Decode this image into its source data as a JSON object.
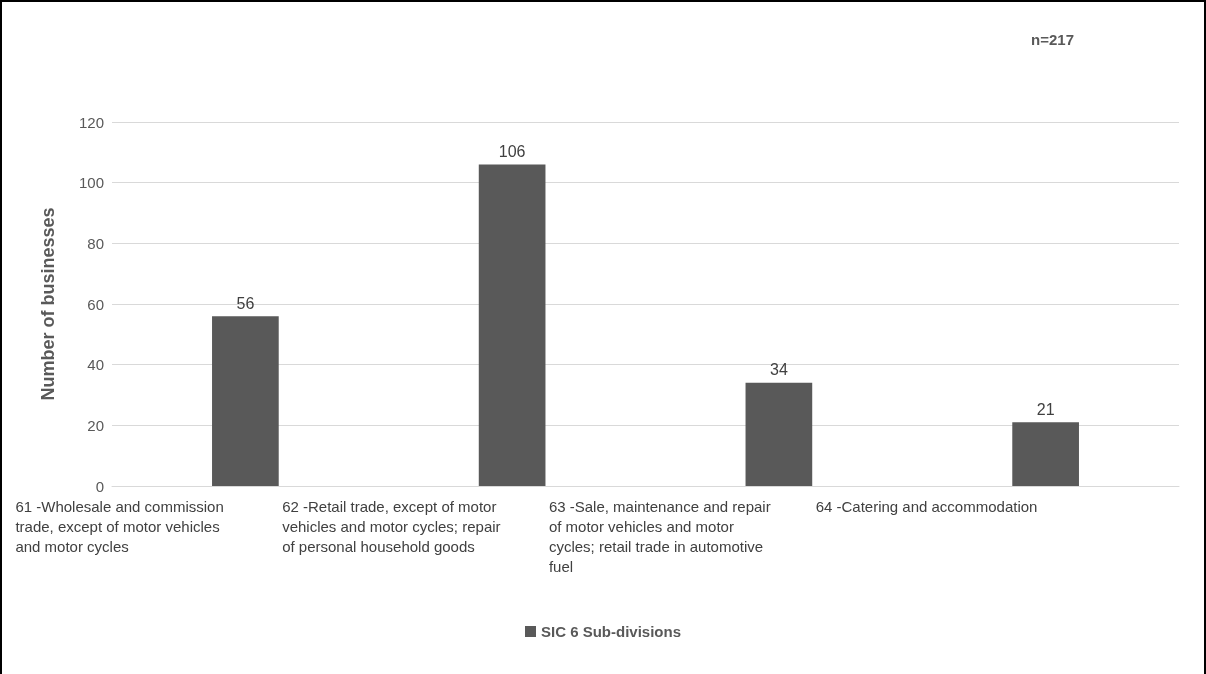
{
  "chart_data": {
    "type": "bar",
    "ylabel": "Number of businesses",
    "categories": [
      "61 -Wholesale and commission trade, except of motor vehicles and motor cycles",
      "62 -Retail trade, except of motor vehicles and motor cycles; repair of personal household goods",
      "63 -Sale, maintenance and repair of motor vehicles and motor cycles; retail trade in automotive fuel",
      "64 -Catering and accommodation"
    ],
    "series": [
      {
        "name": "SIC 6 Sub-divisions",
        "color": "#595959",
        "values": [
          56,
          106,
          34,
          21
        ]
      }
    ],
    "ylim": [
      0,
      120
    ],
    "yticks": [
      0,
      20,
      40,
      60,
      80,
      100,
      120
    ],
    "grid": "y",
    "legend": "bottom",
    "data_labels": true,
    "annotations": [
      "n=217"
    ]
  }
}
